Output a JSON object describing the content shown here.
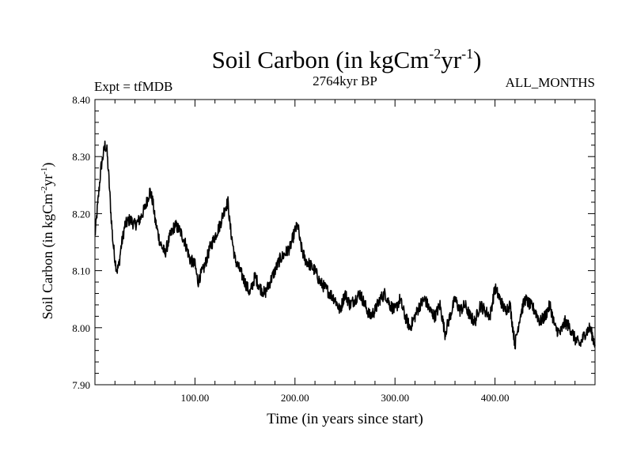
{
  "chart_data": {
    "type": "line",
    "title": "Soil Carbon (in kgCm-2yr-1)",
    "title_parts": {
      "base": "Soil Carbon (in kgCm",
      "sup1": "-2",
      "mid": "yr",
      "sup2": "-1",
      "end": ")"
    },
    "subtitle_left": "Expt = tfMDB",
    "subtitle_center": "2764kyr BP",
    "subtitle_right": "ALL_MONTHS",
    "xlabel": "Time (in years since start)",
    "ylabel_parts": {
      "base": "Soil Carbon (in kgCm",
      "sup1": "-2",
      "mid": "yr",
      "sup2": "-1",
      "end": ")"
    },
    "xlim": [
      0,
      500
    ],
    "ylim": [
      7.9,
      8.4
    ],
    "x_ticks": [
      100,
      200,
      300,
      400
    ],
    "x_tick_labels": [
      "100.00",
      "200.00",
      "300.00",
      "400.00"
    ],
    "y_ticks": [
      7.9,
      8.0,
      8.1,
      8.2,
      8.3,
      8.4
    ],
    "y_tick_labels": [
      "7.90",
      "8.00",
      "8.10",
      "8.20",
      "8.30",
      "8.40"
    ],
    "series": [
      {
        "name": "Soil Carbon",
        "x": [
          0,
          2,
          4,
          6,
          8,
          10,
          12,
          14,
          16,
          18,
          20,
          22,
          24,
          26,
          28,
          30,
          35,
          40,
          45,
          50,
          55,
          58,
          60,
          65,
          70,
          75,
          80,
          85,
          90,
          95,
          100,
          103,
          105,
          108,
          110,
          115,
          120,
          125,
          130,
          133,
          135,
          140,
          145,
          150,
          155,
          160,
          165,
          170,
          175,
          180,
          185,
          190,
          195,
          200,
          203,
          205,
          208,
          210,
          215,
          220,
          225,
          230,
          235,
          240,
          245,
          250,
          255,
          260,
          265,
          270,
          275,
          280,
          285,
          290,
          295,
          300,
          305,
          310,
          315,
          320,
          325,
          330,
          335,
          340,
          345,
          350,
          355,
          360,
          365,
          370,
          375,
          380,
          385,
          390,
          395,
          400,
          405,
          410,
          415,
          420,
          425,
          430,
          435,
          440,
          445,
          450,
          455,
          460,
          465,
          470,
          475,
          480,
          485,
          490,
          495,
          500
        ],
        "values": [
          8.16,
          8.2,
          8.24,
          8.28,
          8.3,
          8.32,
          8.31,
          8.26,
          8.2,
          8.15,
          8.12,
          8.1,
          8.11,
          8.14,
          8.16,
          8.18,
          8.19,
          8.18,
          8.19,
          8.21,
          8.24,
          8.22,
          8.19,
          8.15,
          8.13,
          8.16,
          8.18,
          8.17,
          8.15,
          8.12,
          8.11,
          8.08,
          8.09,
          8.1,
          8.11,
          8.14,
          8.16,
          8.18,
          8.21,
          8.22,
          8.18,
          8.12,
          8.1,
          8.08,
          8.06,
          8.09,
          8.07,
          8.06,
          8.08,
          8.1,
          8.12,
          8.13,
          8.14,
          8.17,
          8.18,
          8.15,
          8.13,
          8.12,
          8.11,
          8.1,
          8.08,
          8.07,
          8.06,
          8.05,
          8.03,
          8.06,
          8.04,
          8.05,
          8.06,
          8.04,
          8.02,
          8.03,
          8.05,
          8.06,
          8.04,
          8.03,
          8.05,
          8.02,
          8.0,
          8.02,
          8.04,
          8.05,
          8.03,
          8.02,
          8.04,
          7.99,
          8.02,
          8.05,
          8.03,
          8.04,
          8.02,
          8.01,
          8.04,
          8.03,
          8.02,
          8.07,
          8.05,
          8.03,
          8.04,
          7.97,
          8.02,
          8.05,
          8.04,
          8.03,
          8.01,
          8.02,
          8.04,
          8.0,
          7.99,
          8.01,
          8.0,
          7.98,
          7.97,
          7.99,
          8.0,
          7.97
        ]
      }
    ],
    "grid": false,
    "legend": "none"
  }
}
